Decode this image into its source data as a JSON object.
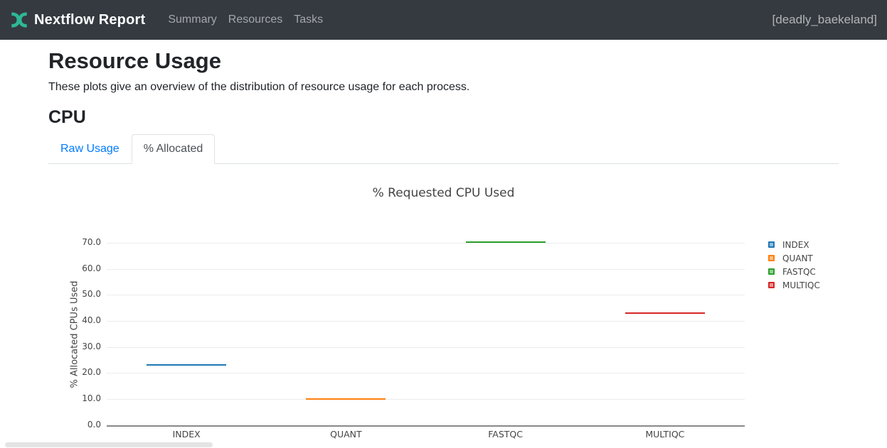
{
  "colors": {
    "navbar_bg": "#343a40",
    "logo": "#2DB896",
    "link_blue": "#007bff",
    "chart_text": "#444444",
    "grid": "#ececec",
    "axis": "#888888",
    "border": "#dee2e6"
  },
  "navbar": {
    "brand": "Nextflow Report",
    "items": [
      {
        "label": "Summary"
      },
      {
        "label": "Resources"
      },
      {
        "label": "Tasks"
      }
    ],
    "run_name": "[deadly_baekeland]"
  },
  "page": {
    "title": "Resource Usage",
    "subtitle": "These plots give an overview of the distribution of resource usage for each process.",
    "section": "CPU"
  },
  "tabs": [
    {
      "label": "Raw Usage",
      "active": false
    },
    {
      "label": "% Allocated",
      "active": true
    }
  ],
  "chart_data": {
    "type": "box",
    "title": "% Requested CPU Used",
    "ylabel": "% Allocated CPUs Used",
    "xlabel": "",
    "categories": [
      "INDEX",
      "QUANT",
      "FASTQC",
      "MULTIQC"
    ],
    "values": [
      22.8,
      9.8,
      69.9,
      42.8
    ],
    "series_colors": [
      "#1f77b4",
      "#ff7f0e",
      "#2ca02c",
      "#d62728"
    ],
    "yticks": [
      0,
      10,
      20,
      30,
      40,
      50,
      60,
      70
    ],
    "ytick_labels": [
      "0.0",
      "10.0",
      "20.0",
      "30.0",
      "40.0",
      "50.0",
      "60.0",
      "70.0"
    ],
    "ylim": [
      0,
      75
    ],
    "grid": true,
    "legend": [
      "INDEX",
      "QUANT",
      "FASTQC",
      "MULTIQC"
    ],
    "legend_position": "right"
  }
}
